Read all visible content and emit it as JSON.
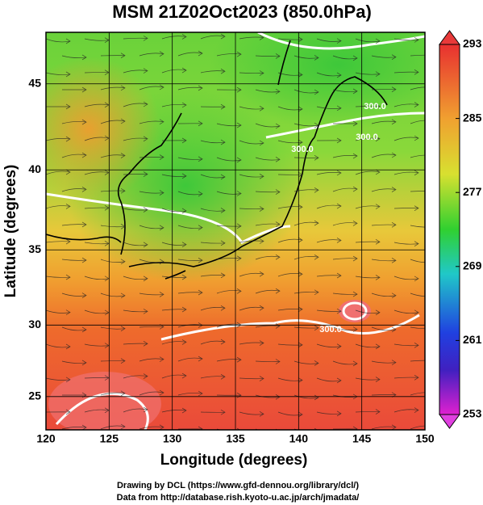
{
  "title": "MSM 21Z02Oct2023 (850.0hPa)",
  "map": {
    "xlabel": "Longitude (degrees)",
    "ylabel": "Latitude  (degrees)",
    "xlim": [
      120,
      150
    ],
    "ylim": [
      22.6,
      47.8
    ],
    "xticks": [
      120,
      125,
      130,
      135,
      140,
      145,
      150
    ],
    "yticks": [
      25,
      30,
      35,
      40,
      45
    ],
    "contour_labels": [
      "300.0",
      "300.0",
      "300.0",
      "300.0"
    ]
  },
  "colorbar": {
    "lim": [
      253,
      293
    ],
    "ticks": [
      253,
      261,
      269,
      277,
      285,
      293
    ]
  },
  "credits": [
    "Drawing by DCL (https://www.gfd-dennou.org/library/dcl/)",
    "Data from http://database.rish.kyoto-u.ac.jp/arch/jmadata/"
  ]
}
